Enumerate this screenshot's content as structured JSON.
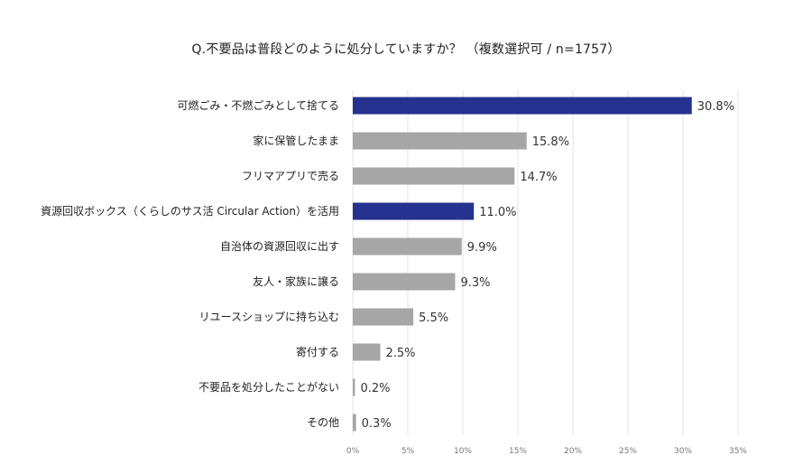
{
  "chart_data": {
    "type": "bar",
    "orientation": "horizontal",
    "title": "Q.不要品は普段どのように処分していますか？ （複数選択可 / n=1757）",
    "xlabel": "",
    "ylabel": "",
    "xlim": [
      0,
      35
    ],
    "grid": true,
    "categories": [
      "可燃ごみ・不燃ごみとして捨てる",
      "家に保管したまま",
      "フリマアプリで売る",
      "資源回収ボックス（くらしのサス活 Circular Action）を活用",
      "自治体の資源回収に出す",
      "友人・家族に譲る",
      "リユースショップに持ち込む",
      "寄付する",
      "不要品を処分したことがない",
      "その他"
    ],
    "values": [
      30.8,
      15.8,
      14.7,
      11.0,
      9.9,
      9.3,
      5.5,
      2.5,
      0.2,
      0.3
    ],
    "value_labels": [
      "30.8%",
      "15.8%",
      "14.7%",
      "11.0%",
      "9.9%",
      "9.3%",
      "5.5%",
      "2.5%",
      "0.2%",
      "0.3%"
    ],
    "highlight": [
      true,
      false,
      false,
      true,
      false,
      false,
      false,
      false,
      false,
      false
    ],
    "x_ticks": [
      0,
      5,
      10,
      15,
      20,
      25,
      30,
      35
    ],
    "x_tick_labels": [
      "0%",
      "5%",
      "10%",
      "15%",
      "20%",
      "25%",
      "30%",
      "35%"
    ],
    "colors": {
      "highlight": "#25328f",
      "default": "#a6a6a6",
      "grid": "#e3e3e3"
    }
  }
}
